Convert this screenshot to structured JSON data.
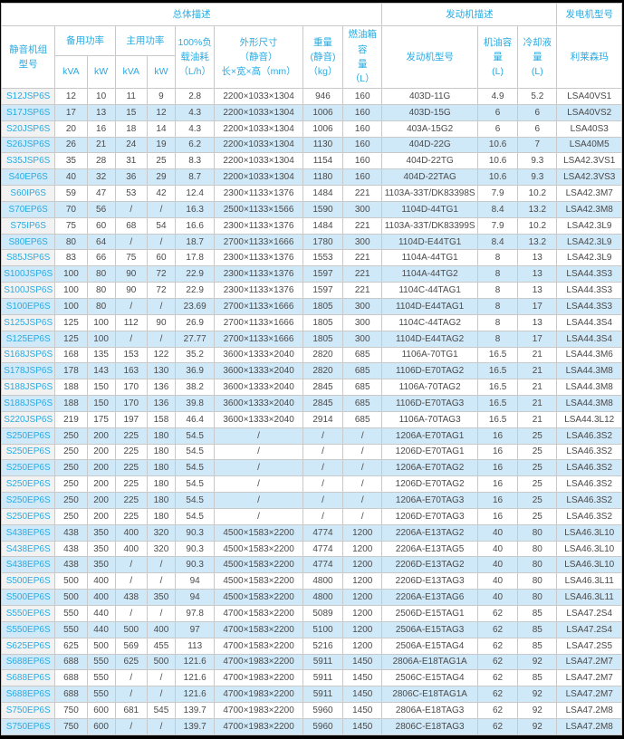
{
  "table": {
    "group_headers": {
      "overall": "总体描述",
      "engine": "发动机描述",
      "generator": "发电机型号"
    },
    "column_headers": {
      "model": "静音机组\n型号",
      "standby_power": "备用功率",
      "prime_power": "主用功率",
      "unit_kva": "kVA",
      "unit_kw": "kW",
      "fuel_consumption": "100%负\n载油耗\n（L/h）",
      "dimensions": "外形尺寸\n（静音）\n长×宽×高（mm）",
      "weight": "重量\n(静音)\n（kg）",
      "fuel_tank": "燃油箱容\n量\n（L）",
      "engine_model": "发动机型号",
      "oil_capacity": "机油容量\n(L)",
      "coolant_capacity": "冷却液量\n(L)",
      "alternator": "利莱森玛"
    },
    "column_keys": [
      "model",
      "standby_kva",
      "standby_kw",
      "prime_kva",
      "prime_kw",
      "fuel_consumption",
      "dimensions",
      "weight",
      "fuel_tank",
      "engine_model",
      "oil_capacity",
      "coolant_capacity",
      "alternator"
    ],
    "colors": {
      "accent_cyan": "#29abe2",
      "stripe_blue": "#d0e9f9",
      "model_column_gray": "#f2f2f2",
      "grid_gray": "#c9c9c9",
      "text_gray": "#4a4a4a"
    },
    "rows": [
      [
        "S12JSP6S",
        "12",
        "10",
        "11",
        "9",
        "2.8",
        "2200×1033×1304",
        "946",
        "160",
        "403D-11G",
        "4.9",
        "5.2",
        "LSA40VS1"
      ],
      [
        "S17JSP6S",
        "17",
        "13",
        "15",
        "12",
        "4.3",
        "2200×1033×1304",
        "1006",
        "160",
        "403D-15G",
        "6",
        "6",
        "LSA40VS2"
      ],
      [
        "S20JSP6S",
        "20",
        "16",
        "18",
        "14",
        "4.3",
        "2200×1033×1304",
        "1006",
        "160",
        "403A-15G2",
        "6",
        "6",
        "LSA40S3"
      ],
      [
        "S26JSP6S",
        "26",
        "21",
        "24",
        "19",
        "6.2",
        "2200×1033×1304",
        "1130",
        "160",
        "404D-22G",
        "10.6",
        "7",
        "LSA40M5"
      ],
      [
        "S35JSP6S",
        "35",
        "28",
        "31",
        "25",
        "8.3",
        "2200×1033×1304",
        "1154",
        "160",
        "404D-22TG",
        "10.6",
        "9.3",
        "LSA42.3VS1"
      ],
      [
        "S40EP6S",
        "40",
        "32",
        "36",
        "29",
        "8.7",
        "2200×1033×1304",
        "1180",
        "160",
        "404D-22TAG",
        "10.6",
        "9.3",
        "LSA42.3VS3"
      ],
      [
        "S60IP6S",
        "59",
        "47",
        "53",
        "42",
        "12.4",
        "2300×1133×1376",
        "1484",
        "221",
        "1103A-33T/DK83398S",
        "7.9",
        "10.2",
        "LSA42.3M7"
      ],
      [
        "S70EP6S",
        "70",
        "56",
        "/",
        "/",
        "16.3",
        "2500×1133×1566",
        "1590",
        "300",
        "1104D-44TG1",
        "8.4",
        "13.2",
        "LSA42.3M8"
      ],
      [
        "S75IP6S",
        "75",
        "60",
        "68",
        "54",
        "16.6",
        "2300×1133×1376",
        "1484",
        "221",
        "1103A-33T/DK83399S",
        "7.9",
        "10.2",
        "LSA42.3L9"
      ],
      [
        "S80EP6S",
        "80",
        "64",
        "/",
        "/",
        "18.7",
        "2700×1133×1666",
        "1780",
        "300",
        "1104D-E44TG1",
        "8.4",
        "13.2",
        "LSA42.3L9"
      ],
      [
        "S85JSP6S",
        "83",
        "66",
        "75",
        "60",
        "17.8",
        "2300×1133×1376",
        "1553",
        "221",
        "1104A-44TG1",
        "8",
        "13",
        "LSA42.3L9"
      ],
      [
        "S100JSP6S",
        "100",
        "80",
        "90",
        "72",
        "22.9",
        "2300×1133×1376",
        "1597",
        "221",
        "1104A-44TG2",
        "8",
        "13",
        "LSA44.3S3"
      ],
      [
        "S100JSP6S",
        "100",
        "80",
        "90",
        "72",
        "22.9",
        "2300×1133×1376",
        "1597",
        "221",
        "1104C-44TAG1",
        "8",
        "13",
        "LSA44.3S3"
      ],
      [
        "S100EP6S",
        "100",
        "80",
        "/",
        "/",
        "23.69",
        "2700×1133×1666",
        "1805",
        "300",
        "1104D-E44TAG1",
        "8",
        "17",
        "LSA44.3S3"
      ],
      [
        "S125JSP6S",
        "125",
        "100",
        "112",
        "90",
        "26.9",
        "2700×1133×1666",
        "1805",
        "300",
        "1104C-44TAG2",
        "8",
        "13",
        "LSA44.3S4"
      ],
      [
        "S125EP6S",
        "125",
        "100",
        "/",
        "/",
        "27.77",
        "2700×1133×1666",
        "1805",
        "300",
        "1104D-E44TAG2",
        "8",
        "17",
        "LSA44.3S4"
      ],
      [
        "S168JSP6S",
        "168",
        "135",
        "153",
        "122",
        "35.2",
        "3600×1333×2040",
        "2820",
        "685",
        "1106A-70TG1",
        "16.5",
        "21",
        "LSA44.3M6"
      ],
      [
        "S178JSP6S",
        "178",
        "143",
        "163",
        "130",
        "36.9",
        "3600×1333×2040",
        "2820",
        "685",
        "1106D-E70TAG2",
        "16.5",
        "21",
        "LSA44.3M8"
      ],
      [
        "S188JSP6S",
        "188",
        "150",
        "170",
        "136",
        "38.2",
        "3600×1333×2040",
        "2845",
        "685",
        "1106A-70TAG2",
        "16.5",
        "21",
        "LSA44.3M8"
      ],
      [
        "S188JSP6S",
        "188",
        "150",
        "170",
        "136",
        "39.8",
        "3600×1333×2040",
        "2845",
        "685",
        "1106D-E70TAG3",
        "16.5",
        "21",
        "LSA44.3M8"
      ],
      [
        "S220JSP6S",
        "219",
        "175",
        "197",
        "158",
        "46.4",
        "3600×1333×2040",
        "2914",
        "685",
        "1106A-70TAG3",
        "16.5",
        "21",
        "LSA44.3L12"
      ],
      [
        "S250EP6S",
        "250",
        "200",
        "225",
        "180",
        "54.5",
        "/",
        "/",
        "/",
        "1206A-E70TAG1",
        "16",
        "25",
        "LSA46.3S2"
      ],
      [
        "S250EP6S",
        "250",
        "200",
        "225",
        "180",
        "54.5",
        "/",
        "/",
        "/",
        "1206D-E70TAG1",
        "16",
        "25",
        "LSA46.3S2"
      ],
      [
        "S250EP6S",
        "250",
        "200",
        "225",
        "180",
        "54.5",
        "/",
        "/",
        "/",
        "1206A-E70TAG2",
        "16",
        "25",
        "LSA46.3S2"
      ],
      [
        "S250EP6S",
        "250",
        "200",
        "225",
        "180",
        "54.5",
        "/",
        "/",
        "/",
        "1206D-E70TAG2",
        "16",
        "25",
        "LSA46.3S2"
      ],
      [
        "S250EP6S",
        "250",
        "200",
        "225",
        "180",
        "54.5",
        "/",
        "/",
        "/",
        "1206A-E70TAG3",
        "16",
        "25",
        "LSA46.3S2"
      ],
      [
        "S250EP6S",
        "250",
        "200",
        "225",
        "180",
        "54.5",
        "/",
        "/",
        "/",
        "1206D-E70TAG3",
        "16",
        "25",
        "LSA46.3S2"
      ],
      [
        "S438EP6S",
        "438",
        "350",
        "400",
        "320",
        "90.3",
        "4500×1583×2200",
        "4774",
        "1200",
        "2206A-E13TAG2",
        "40",
        "80",
        "LSA46.3L10"
      ],
      [
        "S438EP6S",
        "438",
        "350",
        "400",
        "320",
        "90.3",
        "4500×1583×2200",
        "4774",
        "1200",
        "2206A-E13TAG5",
        "40",
        "80",
        "LSA46.3L10"
      ],
      [
        "S438EP6S",
        "438",
        "350",
        "/",
        "/",
        "90.3",
        "4500×1583×2200",
        "4774",
        "1200",
        "2206D-E13TAG2",
        "40",
        "80",
        "LSA46.3L10"
      ],
      [
        "S500EP6S",
        "500",
        "400",
        "/",
        "/",
        "94",
        "4500×1583×2200",
        "4800",
        "1200",
        "2206D-E13TAG3",
        "40",
        "80",
        "LSA46.3L11"
      ],
      [
        "S500EP6S",
        "500",
        "400",
        "438",
        "350",
        "94",
        "4500×1583×2200",
        "4800",
        "1200",
        "2206A-E13TAG6",
        "40",
        "80",
        "LSA46.3L11"
      ],
      [
        "S550EP6S",
        "550",
        "440",
        "/",
        "/",
        "97.8",
        "4700×1583×2200",
        "5089",
        "1200",
        "2506D-E15TAG1",
        "62",
        "85",
        "LSA47.2S4"
      ],
      [
        "S550EP6S",
        "550",
        "440",
        "500",
        "400",
        "97",
        "4700×1583×2200",
        "5100",
        "1200",
        "2506A-E15TAG3",
        "62",
        "85",
        "LSA47.2S4"
      ],
      [
        "S625EP6S",
        "625",
        "500",
        "569",
        "455",
        "113",
        "4700×1583×2200",
        "5216",
        "1200",
        "2506A-E15TAG4",
        "62",
        "85",
        "LSA47.2S5"
      ],
      [
        "S688EP6S",
        "688",
        "550",
        "625",
        "500",
        "121.6",
        "4700×1983×2200",
        "5911",
        "1450",
        "2806A-E18TAG1A",
        "62",
        "92",
        "LSA47.2M7"
      ],
      [
        "S688EP6S",
        "688",
        "550",
        "/",
        "/",
        "121.6",
        "4700×1983×2200",
        "5911",
        "1450",
        "2506C-E15TAG4",
        "62",
        "85",
        "LSA47.2M7"
      ],
      [
        "S688EP6S",
        "688",
        "550",
        "/",
        "/",
        "121.6",
        "4700×1983×2200",
        "5911",
        "1450",
        "2806C-E18TAG1A",
        "62",
        "92",
        "LSA47.2M7"
      ],
      [
        "S750EP6S",
        "750",
        "600",
        "681",
        "545",
        "139.7",
        "4700×1983×2200",
        "5960",
        "1450",
        "2806A-E18TAG3",
        "62",
        "92",
        "LSA47.2M8"
      ],
      [
        "S750EP6S",
        "750",
        "600",
        "/",
        "/",
        "139.7",
        "4700×1983×2200",
        "5960",
        "1450",
        "2806C-E18TAG3",
        "62",
        "92",
        "LSA47.2M8"
      ]
    ]
  }
}
